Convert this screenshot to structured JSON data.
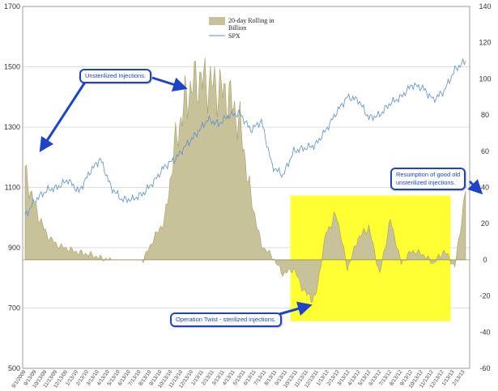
{
  "chart_data": {
    "type": "area",
    "title": "",
    "legend": {
      "placement": "top-center",
      "entries": [
        "20-day Rolling in Billion",
        "SPX"
      ],
      "line1": "20-day Rolling in",
      "line2": "Billion",
      "line3": "SPX"
    },
    "left_axis": {
      "ylim": [
        500,
        1700
      ],
      "ticks": [
        "500",
        "700",
        "900",
        "1100",
        "1300",
        "1500",
        "1700"
      ]
    },
    "right_axis": {
      "ylim": [
        -60,
        140
      ],
      "ticks": [
        "-60",
        "-40",
        "-20",
        "0",
        "20",
        "40",
        "60",
        "80",
        "100",
        "120",
        "140"
      ]
    },
    "x_tick_labels": [
      "9/1/2009",
      "9/13/09",
      "10/13/09",
      "11/13/09",
      "12/13/09",
      "1/13/10",
      "2/13/10",
      "3/13/10",
      "4/13/10",
      "5/13/10",
      "6/13/10",
      "7/13/10",
      "8/13/10",
      "9/13/10",
      "10/13/10",
      "11/13/10",
      "12/13/10",
      "1/13/11",
      "2/13/11",
      "3/13/11",
      "4/13/11",
      "5/13/11",
      "6/13/11",
      "7/13/11",
      "8/13/11",
      "9/13/11",
      "10/13/11",
      "11/13/11",
      "12/13/11",
      "1/13/12",
      "2/13/12",
      "3/13/12",
      "4/13/12",
      "5/13/12",
      "6/13/12",
      "7/13/12",
      "8/13/12",
      "9/13/12",
      "10/13/12",
      "11/13/12",
      "12/13/12",
      "1/13/13",
      "2/13/13"
    ],
    "spx_series": {
      "name": "SPX",
      "axis": "left",
      "color": "#5b8fc9",
      "months": [
        "2009-09",
        "2009-10",
        "2009-11",
        "2009-12",
        "2010-01",
        "2010-02",
        "2010-03",
        "2010-04",
        "2010-05",
        "2010-06",
        "2010-07",
        "2010-08",
        "2010-09",
        "2010-10",
        "2010-11",
        "2010-12",
        "2011-01",
        "2011-02",
        "2011-03",
        "2011-04",
        "2011-05",
        "2011-06",
        "2011-07",
        "2011-08",
        "2011-09",
        "2011-10",
        "2011-11",
        "2011-12",
        "2012-01",
        "2012-02",
        "2012-03",
        "2012-04",
        "2012-05",
        "2012-06",
        "2012-07",
        "2012-08",
        "2012-09",
        "2012-10",
        "2012-11",
        "2012-12",
        "2013-01",
        "2013-02"
      ],
      "values": [
        1005,
        1060,
        1090,
        1100,
        1125,
        1085,
        1150,
        1195,
        1100,
        1060,
        1060,
        1080,
        1120,
        1170,
        1195,
        1240,
        1280,
        1325,
        1310,
        1340,
        1345,
        1290,
        1320,
        1170,
        1140,
        1220,
        1230,
        1240,
        1290,
        1350,
        1400,
        1390,
        1330,
        1340,
        1380,
        1400,
        1440,
        1430,
        1390,
        1420,
        1490,
        1520
      ]
    },
    "rolling_series": {
      "name": "20-day Rolling in Billion",
      "axis": "right",
      "color": "#c8c29a",
      "months": [
        "2009-09",
        "2009-10",
        "2009-11",
        "2009-12",
        "2010-01",
        "2010-02",
        "2010-03",
        "2010-04",
        "2010-05",
        "2010-06",
        "2010-07",
        "2010-08",
        "2010-09",
        "2010-10",
        "2010-11",
        "2010-12",
        "2011-01",
        "2011-02",
        "2011-03",
        "2011-04",
        "2011-05",
        "2011-06",
        "2011-07",
        "2011-08",
        "2011-09",
        "2011-10",
        "2011-11",
        "2011-12",
        "2012-01",
        "2012-02",
        "2012-03",
        "2012-04",
        "2012-05",
        "2012-06",
        "2012-07",
        "2012-08",
        "2012-09",
        "2012-10",
        "2012-11",
        "2012-12",
        "2013-01",
        "2013-02"
      ],
      "values": [
        48,
        28,
        14,
        8,
        6,
        4,
        3,
        1,
        0,
        0,
        0,
        0,
        12,
        22,
        65,
        90,
        100,
        98,
        95,
        90,
        75,
        35,
        8,
        2,
        -8,
        -5,
        -18,
        -22,
        15,
        25,
        -5,
        12,
        18,
        -8,
        22,
        -2,
        5,
        3,
        -2,
        5,
        -4,
        38
      ]
    },
    "annotations": [
      {
        "id": "unsterilized",
        "text": "Unsterilized Injections."
      },
      {
        "id": "twist",
        "text": "Operation Twist - sterilized injections."
      },
      {
        "id": "resumption",
        "text": "Resumption of good old unsterilized injections.",
        "line1": "Resumption of good old",
        "line2": "unsterilized injections."
      }
    ],
    "highlight": {
      "from": "2011-10",
      "to": "2012-12",
      "color": "#ffff33"
    }
  }
}
